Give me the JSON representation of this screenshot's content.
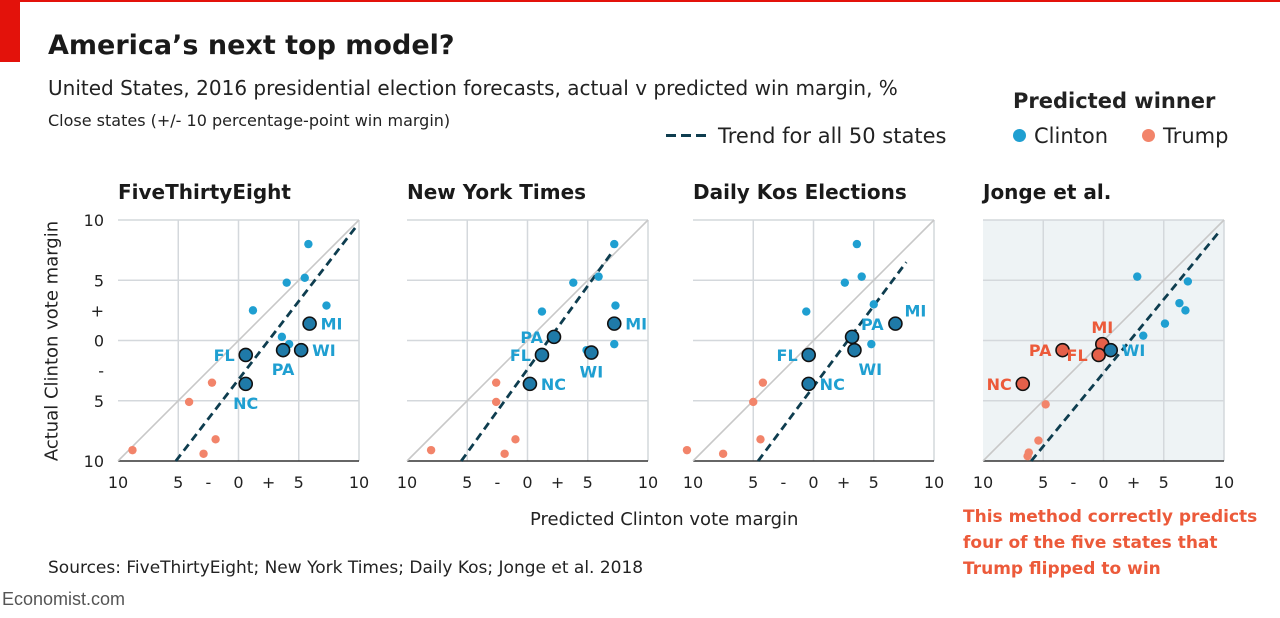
{
  "title": "America’s next top model?",
  "subtitle": "United States, 2016 presidential election forecasts, actual v predicted win margin, %",
  "note": "Close states (+/- 10 percentage-point win margin)",
  "legend": {
    "trend_label": "Trend for all 50 states",
    "title": "Predicted winner",
    "clinton": "Clinton",
    "trump": "Trump"
  },
  "colors": {
    "clinton": "#1f9fd1",
    "trump": "#f2846a",
    "trend": "#0e3d4f",
    "highlight_fill": "#1f7aa8",
    "trump_highlight_fill": "#e4604a",
    "annotation": "#ec5a3a",
    "grid": "#d4d8dc",
    "diagonal": "#c8c8c8",
    "shaded_bg": "#eef3f5"
  },
  "xlabel": "Predicted Clinton vote margin",
  "ylabel": "Actual Clinton vote margin",
  "source": "Sources: FiveThirtyEight; New York Times; Daily Kos; Jonge et al. 2018",
  "credit": "Economist.com",
  "annotation": "This method correctly predicts four of the five states that Trump flipped to win",
  "chart_data": [
    {
      "type": "scatter",
      "title": "FiveThirtyEight",
      "xlim": [
        -10,
        10
      ],
      "ylim": [
        -10,
        10
      ],
      "x_ticks": [
        "10",
        "5",
        "-",
        "0",
        "+",
        "5",
        "10"
      ],
      "y_ticks": [
        "10",
        "5",
        "+",
        "0",
        "-",
        "5",
        "10"
      ],
      "trend": [
        [
          -5.2,
          -10
        ],
        [
          9.8,
          9.5
        ]
      ],
      "points": [
        {
          "x": 1.2,
          "y": 2.5,
          "winner": "Clinton"
        },
        {
          "x": 4.0,
          "y": 4.8,
          "winner": "Clinton"
        },
        {
          "x": 5.5,
          "y": 5.2,
          "winner": "Clinton"
        },
        {
          "x": 5.8,
          "y": 8.0,
          "winner": "Clinton"
        },
        {
          "x": 7.3,
          "y": 2.9,
          "winner": "Clinton"
        },
        {
          "x": 3.6,
          "y": 0.3,
          "winner": "Clinton"
        },
        {
          "x": 4.2,
          "y": -0.3,
          "winner": "Clinton"
        },
        {
          "x": -2.2,
          "y": -3.5,
          "winner": "Trump"
        },
        {
          "x": -4.1,
          "y": -5.1,
          "winner": "Trump"
        },
        {
          "x": -1.9,
          "y": -8.2,
          "winner": "Trump"
        },
        {
          "x": -2.9,
          "y": -9.4,
          "winner": "Trump"
        },
        {
          "x": -8.8,
          "y": -9.1,
          "winner": "Trump"
        }
      ],
      "labels": [
        {
          "state": "MI",
          "x": 5.9,
          "y": 1.4,
          "winner": "Clinton",
          "side": "right"
        },
        {
          "state": "WI",
          "x": 5.2,
          "y": -0.8,
          "winner": "Clinton",
          "side": "right"
        },
        {
          "state": "PA",
          "x": 3.7,
          "y": -0.8,
          "winner": "Clinton",
          "side": "below"
        },
        {
          "state": "FL",
          "x": 0.6,
          "y": -1.2,
          "winner": "Clinton",
          "side": "left"
        },
        {
          "state": "NC",
          "x": 0.6,
          "y": -3.6,
          "winner": "Clinton",
          "side": "below"
        }
      ]
    },
    {
      "type": "scatter",
      "title": "New York Times",
      "xlim": [
        -10,
        10
      ],
      "ylim": [
        -10,
        10
      ],
      "x_ticks": [
        "10",
        "5",
        "-",
        "0",
        "+",
        "5",
        "10"
      ],
      "y_ticks": [],
      "trend": [
        [
          -5.5,
          -10
        ],
        [
          7.0,
          7.3
        ]
      ],
      "points": [
        {
          "x": 1.2,
          "y": 2.4,
          "winner": "Clinton"
        },
        {
          "x": 3.8,
          "y": 4.8,
          "winner": "Clinton"
        },
        {
          "x": 5.9,
          "y": 5.3,
          "winner": "Clinton"
        },
        {
          "x": 7.2,
          "y": 8.0,
          "winner": "Clinton"
        },
        {
          "x": 7.3,
          "y": 2.9,
          "winner": "Clinton"
        },
        {
          "x": 4.9,
          "y": -0.8,
          "winner": "Clinton"
        },
        {
          "x": 7.2,
          "y": -0.3,
          "winner": "Clinton"
        },
        {
          "x": -2.6,
          "y": -3.5,
          "winner": "Trump"
        },
        {
          "x": -2.6,
          "y": -5.1,
          "winner": "Trump"
        },
        {
          "x": -1.0,
          "y": -8.2,
          "winner": "Trump"
        },
        {
          "x": -1.9,
          "y": -9.4,
          "winner": "Trump"
        },
        {
          "x": -8.0,
          "y": -9.1,
          "winner": "Trump"
        }
      ],
      "labels": [
        {
          "state": "MI",
          "x": 7.2,
          "y": 1.4,
          "winner": "Clinton",
          "side": "right"
        },
        {
          "state": "PA",
          "x": 2.2,
          "y": 0.3,
          "winner": "Clinton",
          "side": "left"
        },
        {
          "state": "FL",
          "x": 1.2,
          "y": -1.2,
          "winner": "Clinton",
          "side": "left"
        },
        {
          "state": "WI",
          "x": 5.3,
          "y": -1.0,
          "winner": "Clinton",
          "side": "below"
        },
        {
          "state": "NC",
          "x": 0.2,
          "y": -3.6,
          "winner": "Clinton",
          "side": "right"
        }
      ]
    },
    {
      "type": "scatter",
      "title": "Daily Kos Elections",
      "xlim": [
        -10,
        10
      ],
      "ylim": [
        -10,
        10
      ],
      "x_ticks": [
        "10",
        "5",
        "-",
        "0",
        "+",
        "5",
        "10"
      ],
      "y_ticks": [],
      "trend": [
        [
          -4.6,
          -10
        ],
        [
          7.7,
          6.5
        ]
      ],
      "points": [
        {
          "x": -0.6,
          "y": 2.4,
          "winner": "Clinton"
        },
        {
          "x": 2.6,
          "y": 4.8,
          "winner": "Clinton"
        },
        {
          "x": 3.6,
          "y": 8.0,
          "winner": "Clinton"
        },
        {
          "x": 4.0,
          "y": 5.3,
          "winner": "Clinton"
        },
        {
          "x": 5.0,
          "y": 3.0,
          "winner": "Clinton"
        },
        {
          "x": 4.8,
          "y": -0.3,
          "winner": "Clinton"
        },
        {
          "x": -4.2,
          "y": -3.5,
          "winner": "Trump"
        },
        {
          "x": -5.0,
          "y": -5.1,
          "winner": "Trump"
        },
        {
          "x": -4.4,
          "y": -8.2,
          "winner": "Trump"
        },
        {
          "x": -7.5,
          "y": -9.4,
          "winner": "Trump"
        },
        {
          "x": -10.5,
          "y": -9.1,
          "winner": "Trump"
        }
      ],
      "labels": [
        {
          "state": "MI",
          "x": 6.8,
          "y": 1.4,
          "winner": "Clinton",
          "side": "above-right"
        },
        {
          "state": "PA",
          "x": 3.2,
          "y": 0.3,
          "winner": "Clinton",
          "side": "above-right"
        },
        {
          "state": "FL",
          "x": -0.4,
          "y": -1.2,
          "winner": "Clinton",
          "side": "left"
        },
        {
          "state": "WI",
          "x": 3.4,
          "y": -0.8,
          "winner": "Clinton",
          "side": "below-right"
        },
        {
          "state": "NC",
          "x": -0.4,
          "y": -3.6,
          "winner": "Clinton",
          "side": "right"
        }
      ]
    },
    {
      "type": "scatter",
      "title": "Jonge et al.",
      "xlim": [
        -10,
        10
      ],
      "ylim": [
        -10,
        10
      ],
      "x_ticks": [
        "10",
        "5",
        "-",
        "0",
        "+",
        "5",
        "10"
      ],
      "y_ticks": [],
      "shaded": true,
      "trend": [
        [
          -6.0,
          -10
        ],
        [
          9.5,
          8.9
        ]
      ],
      "points": [
        {
          "x": 2.8,
          "y": 5.3,
          "winner": "Clinton"
        },
        {
          "x": 7.0,
          "y": 4.9,
          "winner": "Clinton"
        },
        {
          "x": 6.3,
          "y": 3.1,
          "winner": "Clinton"
        },
        {
          "x": 6.8,
          "y": 2.5,
          "winner": "Clinton"
        },
        {
          "x": 5.1,
          "y": 1.4,
          "winner": "Clinton"
        },
        {
          "x": 3.3,
          "y": 0.4,
          "winner": "Clinton"
        },
        {
          "x": -4.8,
          "y": -5.3,
          "winner": "Trump"
        },
        {
          "x": -5.4,
          "y": -8.3,
          "winner": "Trump"
        },
        {
          "x": -6.2,
          "y": -9.3,
          "winner": "Trump"
        },
        {
          "x": -6.3,
          "y": -9.6,
          "winner": "Trump"
        }
      ],
      "labels": [
        {
          "state": "MI",
          "x": -0.1,
          "y": -0.3,
          "winner": "Trump",
          "side": "above"
        },
        {
          "state": "PA",
          "x": -3.4,
          "y": -0.8,
          "winner": "Trump",
          "side": "left"
        },
        {
          "state": "FL",
          "x": -0.4,
          "y": -1.2,
          "winner": "Trump",
          "side": "left"
        },
        {
          "state": "WI",
          "x": 0.6,
          "y": -0.8,
          "winner": "Clinton",
          "side": "right"
        },
        {
          "state": "NC",
          "x": -6.7,
          "y": -3.6,
          "winner": "Trump",
          "side": "left"
        }
      ]
    }
  ]
}
